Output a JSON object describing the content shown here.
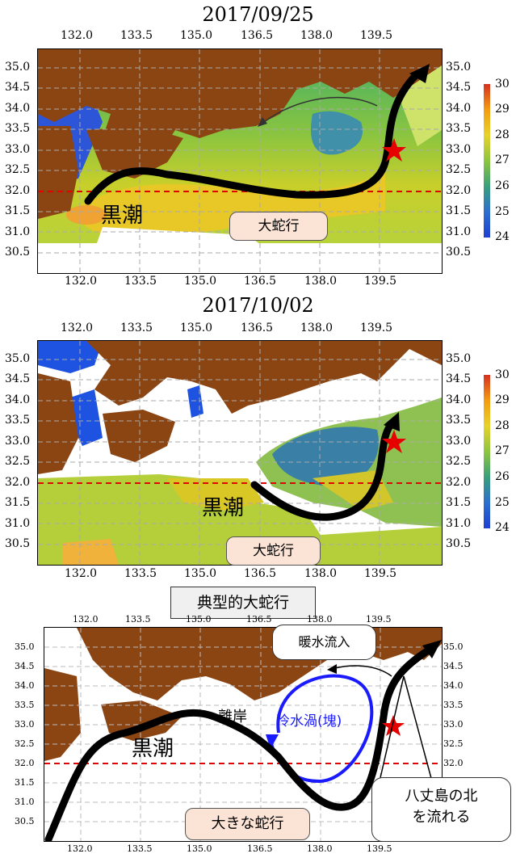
{
  "panel1": {
    "title": "2017/09/25",
    "kuroshio_label": "黒潮",
    "callout": "大蛇行"
  },
  "panel2": {
    "title": "2017/10/02",
    "kuroshio_label": "黒潮",
    "callout": "大蛇行"
  },
  "section_label": "典型的大蛇行",
  "panel3": {
    "kuroshio_label": "黒潮",
    "detach_label": "離岸",
    "cold_eddy_label": "冷水渦(塊)",
    "warm_inflow_label": "暖水流入",
    "big_meander_label": "大きな蛇行",
    "hachijo_line1": "八丈島の北",
    "hachijo_line2": "を流れる"
  },
  "lon_ticks": [
    "132.0",
    "133.5",
    "135.0",
    "136.5",
    "138.0",
    "139.5"
  ],
  "lat_ticks": [
    "35.0",
    "34.5",
    "34.0",
    "33.5",
    "33.0",
    "32.5",
    "32.0",
    "31.5",
    "31.0",
    "30.5"
  ],
  "colorbar_ticks": [
    "30",
    "29",
    "28",
    "27",
    "26",
    "25",
    "24"
  ],
  "colors": {
    "land": "#8b4513",
    "stream_arrow": "#000000",
    "eddy": "#1a1aff",
    "lat32_line": "#e60000",
    "star": "#e60000"
  }
}
